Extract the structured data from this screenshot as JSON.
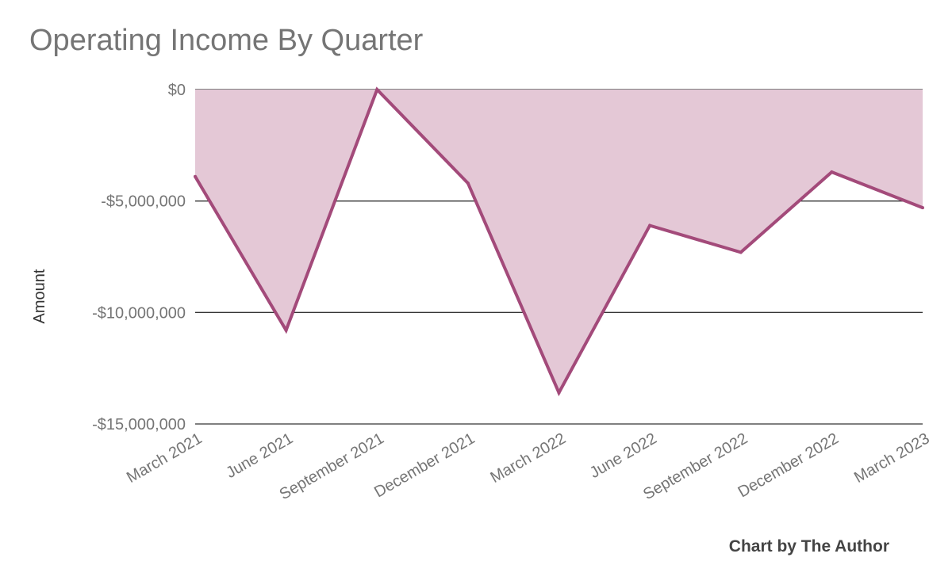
{
  "chart_data": {
    "type": "area",
    "title": "Operating Income By Quarter",
    "xlabel": "",
    "ylabel": "Amount",
    "categories": [
      "March 2021",
      "June 2021",
      "September 2021",
      "December 2021",
      "March 2022",
      "June 2022",
      "September 2022",
      "December 2022",
      "March 2023"
    ],
    "values": [
      -3900000,
      -10800000,
      0,
      -4200000,
      -13600000,
      -6100000,
      -7300000,
      -3700000,
      -5300000
    ],
    "ylim": [
      -15000000,
      0
    ],
    "yticks": [
      0,
      -5000000,
      -10000000,
      -15000000
    ],
    "ytick_labels": [
      "$0",
      "-$5,000,000",
      "-$10,000,000",
      "-$15,000,000"
    ],
    "grid": true,
    "legend": "none",
    "colors": {
      "line": "#a34a7a",
      "fill": "#e4c8d6",
      "grid": "#333333"
    },
    "credit": "Chart by The Author"
  }
}
